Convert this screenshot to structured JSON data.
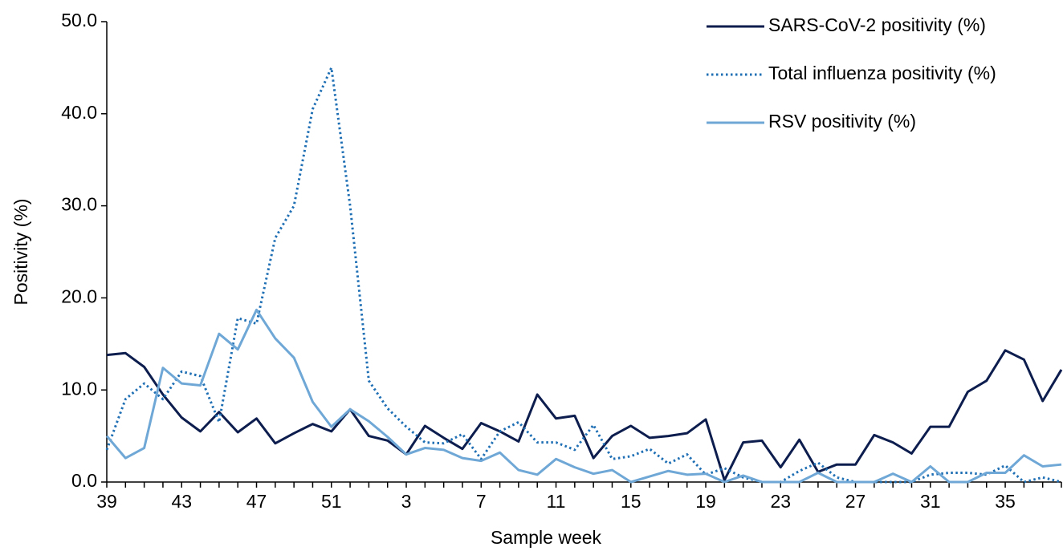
{
  "chart_data": {
    "type": "line",
    "y_label": "Positivity (%)",
    "x_label": "Sample week",
    "categories": [
      39,
      null,
      null,
      null,
      43,
      null,
      null,
      null,
      47,
      null,
      null,
      null,
      51,
      null,
      null,
      null,
      3,
      null,
      null,
      null,
      7,
      null,
      null,
      null,
      11,
      null,
      null,
      null,
      15,
      null,
      null,
      null,
      19,
      null,
      null,
      null,
      23,
      null,
      null,
      null,
      27,
      null,
      null,
      null,
      31,
      null,
      null,
      null,
      35,
      null,
      null,
      null
    ],
    "series": [
      {
        "name": "SARS-CoV-2 positivity (%)",
        "color": "#0c1d4e",
        "style": "solid",
        "values": [
          13.8,
          14.0,
          12.5,
          9.5,
          7.0,
          5.5,
          7.6,
          5.4,
          6.9,
          4.2,
          5.3,
          6.3,
          5.5,
          7.9,
          5.0,
          4.5,
          3.0,
          6.1,
          4.8,
          3.6,
          6.4,
          5.5,
          4.4,
          9.5,
          6.9,
          7.2,
          2.6,
          5.0,
          6.1,
          4.8,
          5.0,
          5.3,
          6.8,
          0.2,
          4.3,
          4.5,
          1.6,
          4.6,
          1.1,
          1.9,
          1.9,
          5.1,
          4.3,
          3.1,
          6.0,
          6.0,
          9.8,
          11.0,
          14.3,
          13.3,
          8.8,
          12.2
        ]
      },
      {
        "name": "Total influenza positivity (%)",
        "color": "#1f6fb4",
        "style": "dotted",
        "values": [
          3.5,
          9.0,
          10.7,
          9.0,
          12.0,
          11.5,
          6.5,
          17.8,
          17.2,
          26.5,
          30.0,
          40.5,
          45.0,
          30.0,
          11.0,
          8.0,
          6.0,
          4.3,
          4.2,
          5.2,
          2.5,
          5.5,
          6.5,
          4.3,
          4.3,
          3.5,
          6.2,
          2.5,
          2.8,
          3.6,
          2.0,
          3.0,
          0.8,
          1.5,
          0.5,
          0.0,
          0.0,
          1.2,
          2.1,
          0.5,
          0.0,
          0.0,
          0.0,
          0.0,
          0.8,
          1.0,
          1.0,
          0.8,
          1.8,
          0.0,
          0.5,
          0.0
        ]
      },
      {
        "name": "RSV positivity (%)",
        "color": "#6fa8d6",
        "style": "solid",
        "values": [
          5.0,
          2.6,
          3.7,
          12.4,
          10.7,
          10.5,
          16.1,
          14.4,
          18.7,
          15.6,
          13.5,
          8.7,
          6.0,
          7.9,
          6.6,
          4.9,
          3.0,
          3.7,
          3.5,
          2.6,
          2.3,
          3.2,
          1.3,
          0.8,
          2.5,
          1.6,
          0.9,
          1.3,
          0.0,
          0.6,
          1.2,
          0.8,
          0.9,
          0.0,
          0.7,
          0.0,
          0.0,
          0.0,
          1.0,
          0.0,
          0.0,
          0.0,
          0.9,
          0.0,
          1.7,
          0.0,
          0.0,
          1.0,
          1.0,
          2.9,
          1.7,
          1.9
        ]
      }
    ],
    "ylim": [
      0,
      50
    ],
    "yticks": [
      {
        "value": 0,
        "label": "0.0"
      },
      {
        "value": 10,
        "label": "10.0"
      },
      {
        "value": 20,
        "label": "20.0"
      },
      {
        "value": 30,
        "label": "30.0"
      },
      {
        "value": 40,
        "label": "40.0"
      },
      {
        "value": 50,
        "label": "50.0"
      }
    ],
    "grid": false,
    "legend": "top-right"
  }
}
